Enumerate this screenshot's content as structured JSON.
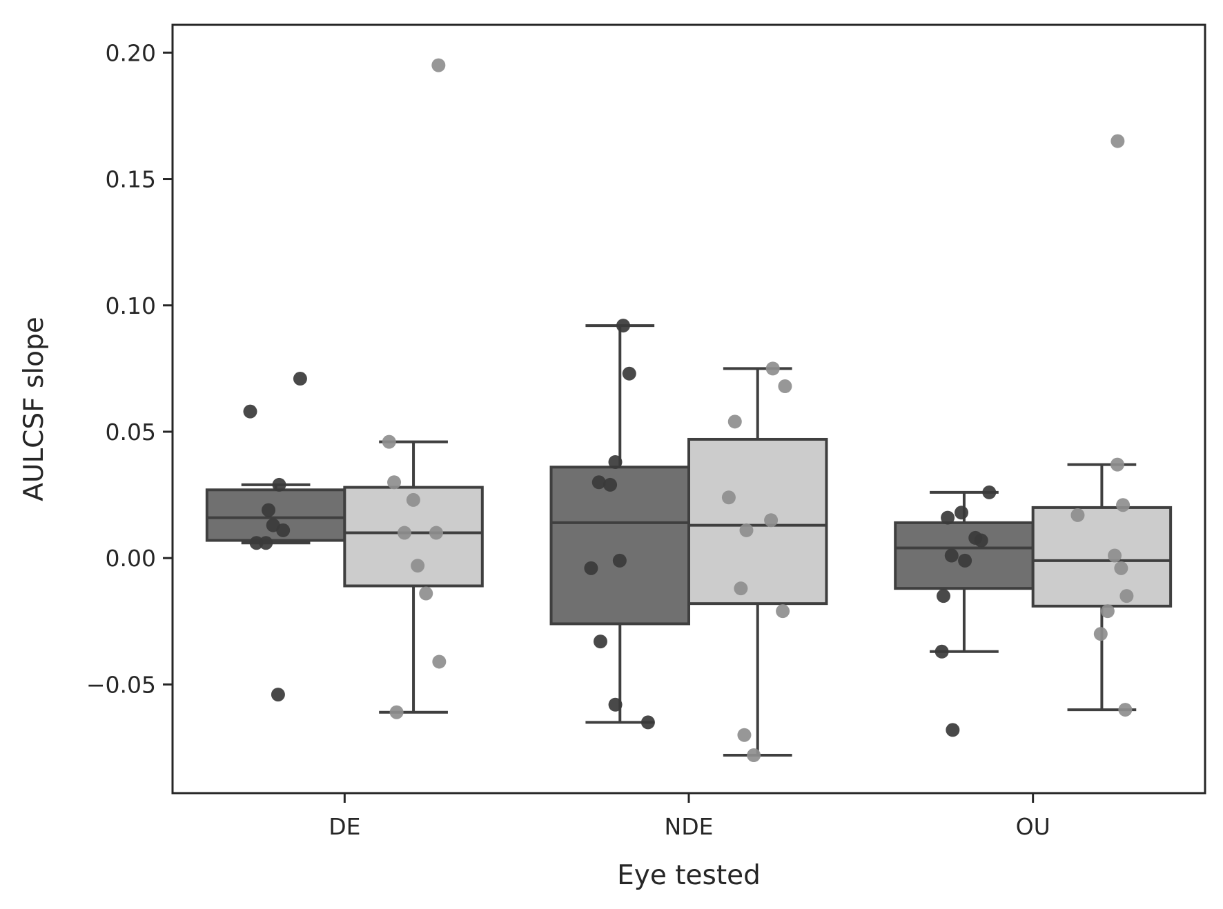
{
  "chart_data": {
    "type": "box",
    "title": "",
    "xlabel": "Eye tested",
    "ylabel": "AULCSF slope",
    "categories": [
      "DE",
      "NDE",
      "OU"
    ],
    "ylim": [
      -0.093,
      0.211
    ],
    "yticks": [
      -0.05,
      0.0,
      0.05,
      0.1,
      0.15,
      0.2
    ],
    "ytick_labels": [
      "−0.05",
      "0.00",
      "0.05",
      "0.10",
      "0.15",
      "0.20"
    ],
    "grid": false,
    "legend": "none",
    "series": [
      {
        "color": "#707070",
        "point_color": "#3a3a3a",
        "boxes": [
          {
            "whisker_low": 0.006,
            "q1": 0.007,
            "median": 0.016,
            "q3": 0.027,
            "whisker_high": 0.029
          },
          {
            "whisker_low": -0.065,
            "q1": -0.026,
            "median": 0.014,
            "q3": 0.036,
            "whisker_high": 0.092
          },
          {
            "whisker_low": -0.037,
            "q1": -0.012,
            "median": 0.004,
            "q3": 0.014,
            "whisker_high": 0.026
          }
        ],
        "points": [
          [
            0.071,
            0.058,
            0.029,
            0.019,
            0.013,
            0.011,
            0.006,
            0.006,
            -0.054
          ],
          [
            0.092,
            0.073,
            0.038,
            0.03,
            0.029,
            -0.001,
            -0.004,
            -0.033,
            -0.058,
            -0.065
          ],
          [
            0.026,
            0.018,
            0.016,
            0.008,
            0.007,
            0.001,
            -0.001,
            -0.015,
            -0.037,
            -0.068
          ]
        ]
      },
      {
        "color": "#cccccc",
        "point_color": "#8e8e8e",
        "boxes": [
          {
            "whisker_low": -0.061,
            "q1": -0.011,
            "median": 0.01,
            "q3": 0.028,
            "whisker_high": 0.046
          },
          {
            "whisker_low": -0.078,
            "q1": -0.018,
            "median": 0.013,
            "q3": 0.047,
            "whisker_high": 0.075
          },
          {
            "whisker_low": -0.06,
            "q1": -0.019,
            "median": -0.001,
            "q3": 0.02,
            "whisker_high": 0.037
          }
        ],
        "points": [
          [
            0.195,
            0.046,
            0.03,
            0.023,
            0.01,
            0.01,
            -0.003,
            -0.014,
            -0.041,
            -0.061
          ],
          [
            0.075,
            0.068,
            0.054,
            0.024,
            0.015,
            0.011,
            -0.012,
            -0.021,
            -0.07,
            -0.078
          ],
          [
            0.165,
            0.037,
            0.021,
            0.017,
            0.001,
            -0.004,
            -0.015,
            -0.021,
            -0.03,
            -0.06
          ]
        ]
      }
    ]
  }
}
